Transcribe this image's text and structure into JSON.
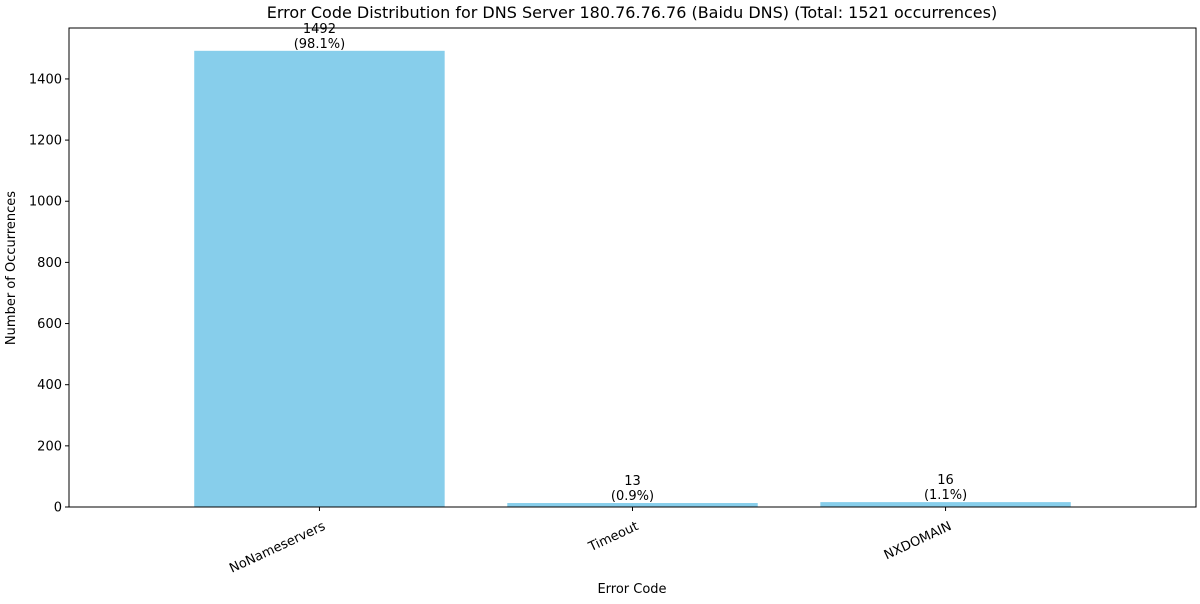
{
  "chart_data": {
    "type": "bar",
    "title": "Error Code Distribution for DNS Server 180.76.76.76 (Baidu DNS) (Total: 1521 occurrences)",
    "xlabel": "Error Code",
    "ylabel": "Number of Occurrences",
    "categories": [
      "NoNameservers",
      "Timeout",
      "NXDOMAIN"
    ],
    "values": [
      1492,
      13,
      16
    ],
    "value_labels": [
      "1492",
      "13",
      "16"
    ],
    "percent_labels": [
      "(98.1%)",
      "(0.9%)",
      "(1.1%)"
    ],
    "ylim": [
      0,
      1566.6
    ],
    "yticks": [
      0,
      200,
      400,
      600,
      800,
      1000,
      1200,
      1400
    ],
    "bar_color": "#87CEEB",
    "grid": false,
    "legend": "none",
    "xtick_rotation": "rotated"
  }
}
